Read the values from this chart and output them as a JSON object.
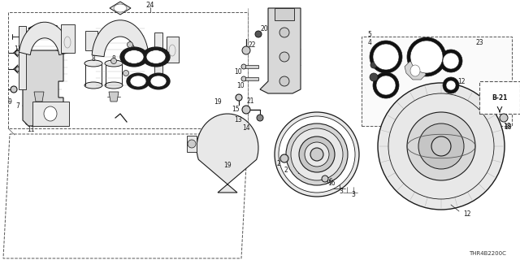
{
  "bg_color": "#ffffff",
  "line_color": "#1a1a1a",
  "diagram_code": "THR4B2200C",
  "fig_width": 6.4,
  "fig_height": 3.2,
  "dpi": 100
}
